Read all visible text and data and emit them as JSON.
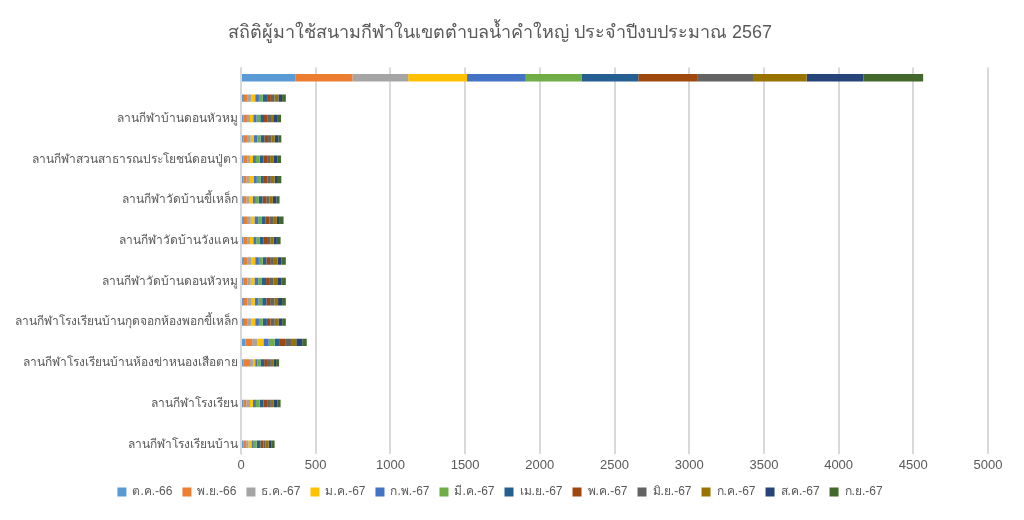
{
  "chart_data": {
    "type": "bar",
    "orientation": "horizontal",
    "stacked": true,
    "title": "สถิติผู้มาใช้สนามกีฬาในเขตตำบลน้ำคำใหญ่ ประจำปีงบประมาณ 2567",
    "categories": [
      null,
      null,
      "ลานกีฬาบ้านดอนหัวหมู",
      null,
      "ลานกีฬาสวนสาธารณประโยชน์ดอนปู่ตา",
      null,
      "ลานกีฬาวัดบ้านขี้เหล็ก",
      null,
      "ลานกีฬาวัดบ้านวังแคน",
      null,
      "ลานกีฬาวัดบ้านดอนหัวหมู",
      null,
      "ลานกีฬาโรงเรียนบ้านกุดจอกห้องพอกขี้เหล็ก",
      null,
      "ลานกีฬาโรงเรียนบ้านห้องข่าหนองเสือตาย",
      null,
      "ลานกีฬาโรงเรียน",
      null,
      "ลานกีฬาโรงเรียนบ้าน"
    ],
    "series": [
      {
        "name": "ต.ค.-66",
        "color": "#5b9bd5",
        "values": [
          366,
          20,
          15,
          18,
          15,
          15,
          12,
          20,
          15,
          20,
          18,
          20,
          20,
          30,
          15,
          null,
          15,
          null,
          15
        ]
      },
      {
        "name": "พ.ย.-66",
        "color": "#ed7d31",
        "values": [
          380,
          25,
          25,
          22,
          30,
          22,
          25,
          20,
          30,
          25,
          25,
          22,
          25,
          45,
          45,
          null,
          20,
          null,
          20
        ]
      },
      {
        "name": "ธ.ค.-67",
        "color": "#a5a5a5",
        "values": [
          373,
          25,
          20,
          25,
          15,
          22,
          20,
          25,
          15,
          25,
          22,
          25,
          25,
          35,
          20,
          null,
          25,
          null,
          15
        ]
      },
      {
        "name": "ม.ค.-67",
        "color": "#ffc000",
        "values": [
          394,
          25,
          22,
          22,
          20,
          25,
          22,
          25,
          22,
          25,
          25,
          25,
          25,
          40,
          15,
          null,
          20,
          null,
          20
        ]
      },
      {
        "name": "ก.พ.-67",
        "color": "#4472c4",
        "values": [
          393,
          25,
          22,
          22,
          20,
          22,
          20,
          25,
          20,
          25,
          25,
          25,
          25,
          35,
          15,
          null,
          20,
          null,
          15
        ]
      },
      {
        "name": "มี.ค.-67",
        "color": "#70ad47",
        "values": [
          373,
          25,
          25,
          22,
          25,
          25,
          20,
          25,
          22,
          25,
          25,
          25,
          25,
          40,
          20,
          null,
          25,
          null,
          20
        ]
      },
      {
        "name": "เม.ย.-67",
        "color": "#255e91",
        "values": [
          380,
          30,
          25,
          25,
          25,
          22,
          25,
          25,
          25,
          25,
          28,
          28,
          28,
          35,
          25,
          null,
          25,
          null,
          25
        ]
      },
      {
        "name": "พ.ค.-67",
        "color": "#9e480e",
        "values": [
          394,
          25,
          25,
          25,
          25,
          25,
          25,
          25,
          25,
          25,
          25,
          25,
          25,
          40,
          25,
          null,
          25,
          null,
          20
        ]
      },
      {
        "name": "มิ.ย.-67",
        "color": "#636363",
        "values": [
          380,
          25,
          22,
          22,
          20,
          22,
          22,
          25,
          22,
          25,
          25,
          28,
          28,
          35,
          20,
          null,
          25,
          null,
          15
        ]
      },
      {
        "name": "ก.ค.-67",
        "color": "#997300",
        "values": [
          353,
          25,
          20,
          22,
          25,
          25,
          22,
          25,
          22,
          25,
          25,
          25,
          25,
          35,
          20,
          null,
          20,
          null,
          20
        ]
      },
      {
        "name": "ส.ค.-67",
        "color": "#264478",
        "values": [
          380,
          25,
          25,
          25,
          25,
          22,
          25,
          20,
          22,
          25,
          27,
          27,
          25,
          40,
          15,
          null,
          25,
          null,
          20
        ]
      },
      {
        "name": "ก.ย.-67",
        "color": "#43682b",
        "values": [
          400,
          25,
          22,
          20,
          23,
          23,
          20,
          25,
          25,
          30,
          30,
          25,
          24,
          30,
          20,
          null,
          20,
          null,
          20
        ]
      }
    ],
    "xlim": [
      0,
      5000
    ],
    "xticks": [
      0,
      500,
      1000,
      1500,
      2000,
      2500,
      3000,
      3500,
      4000,
      4500,
      5000
    ],
    "grid": "x",
    "legend": "bottom"
  }
}
